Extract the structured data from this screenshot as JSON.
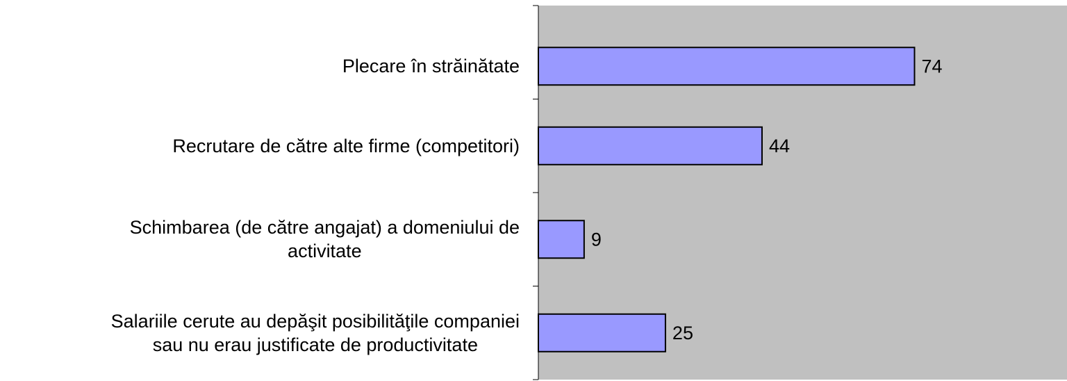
{
  "chart_data": {
    "type": "bar",
    "orientation": "horizontal",
    "categories": [
      "Plecare în străinătate",
      "Recrutare de către alte firme (competitori)",
      "Schimbarea (de către angajat) a domeniului de\nactivitate",
      "Salariile cerute au depăşit posibilităţile companiei\nsau nu erau justificate de productivitate"
    ],
    "values": [
      74,
      44,
      9,
      25
    ],
    "color": "#9999ff",
    "background": "#c0c0c0",
    "xlim": [
      0,
      104
    ]
  }
}
